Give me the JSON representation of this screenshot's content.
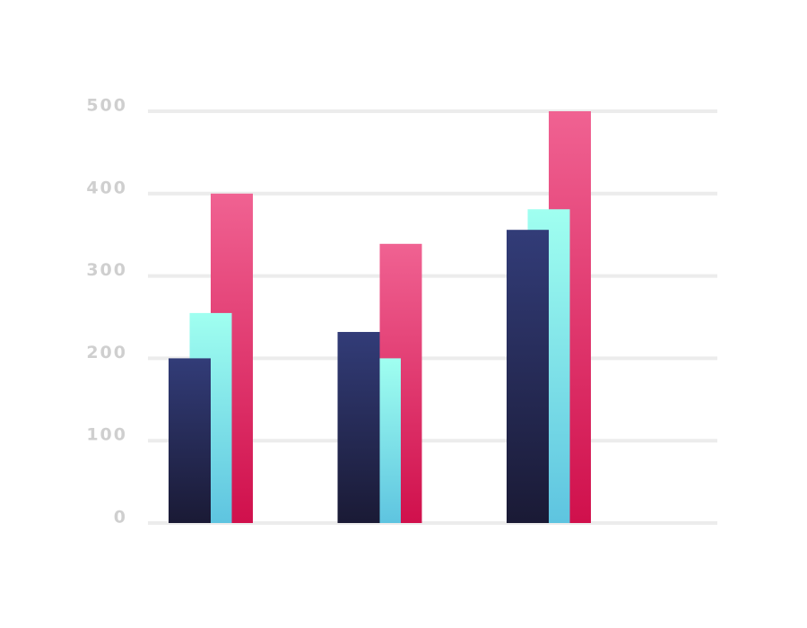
{
  "chart_data": {
    "type": "bar",
    "categories": [
      null,
      null,
      null
    ],
    "series": [
      {
        "color": "#323c78",
        "color2": "#1a1a35",
        "values": [
          200,
          232,
          356
        ]
      },
      {
        "color": "#a0fff0",
        "color2": "#5ec4e0",
        "values": [
          255,
          200,
          381
        ]
      },
      {
        "color": "#f06292",
        "color2": "#d0104c",
        "values": [
          400,
          339,
          500
        ]
      }
    ],
    "ylim": [
      0,
      500
    ],
    "yticks": [
      0,
      100,
      200,
      300,
      400,
      500
    ],
    "grid": true
  }
}
